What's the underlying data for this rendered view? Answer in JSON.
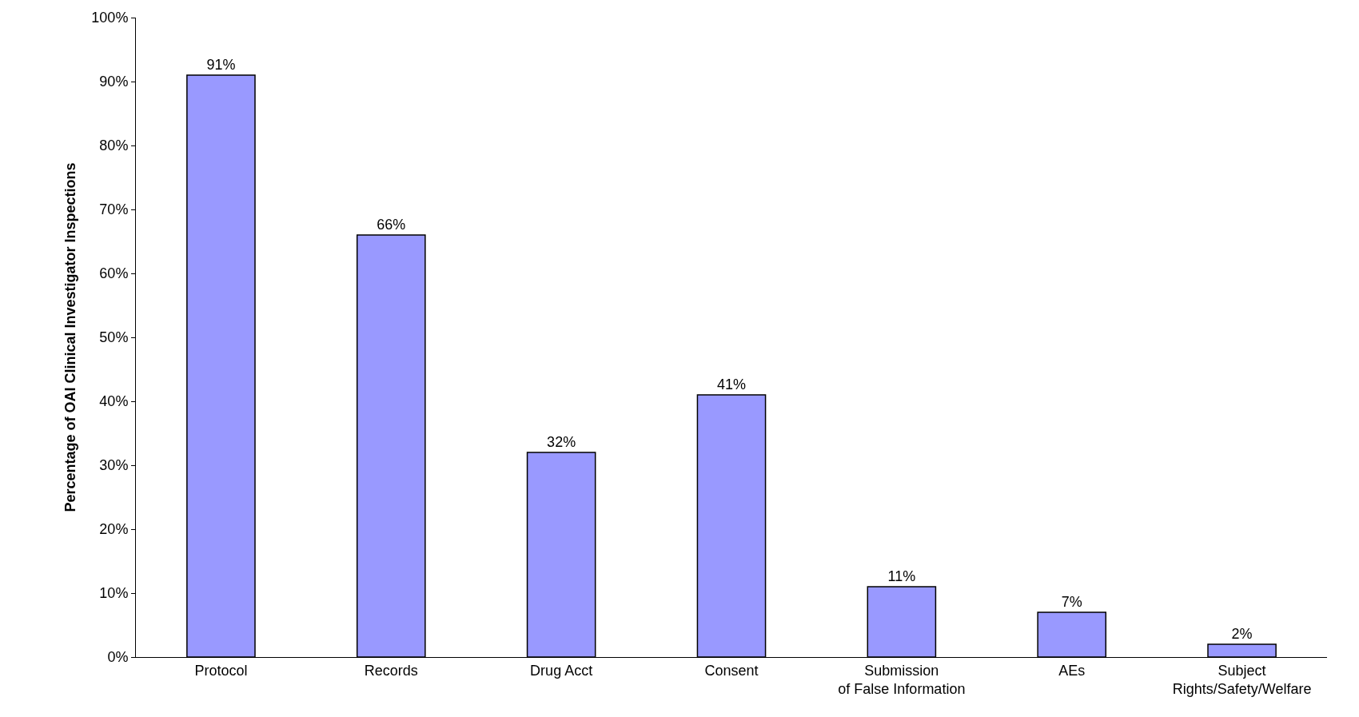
{
  "chart_data": {
    "type": "bar",
    "ylabel": "Percentage of OAI Clinical Investigator Inspections",
    "categories": [
      "Protocol",
      "Records",
      "Drug Acct",
      "Consent",
      "Submission\nof False Information",
      "AEs",
      "Subject\nRights/Safety/Welfare"
    ],
    "values": [
      91,
      66,
      32,
      41,
      11,
      7,
      2
    ],
    "value_labels": [
      "91%",
      "66%",
      "32%",
      "41%",
      "11%",
      "7%",
      "2%"
    ],
    "color": "#9999ff",
    "ylim": [
      0,
      100
    ],
    "yticks": [
      {
        "value": 0,
        "label": "0%"
      },
      {
        "value": 10,
        "label": "10%"
      },
      {
        "value": 20,
        "label": "20%"
      },
      {
        "value": 30,
        "label": "30%"
      },
      {
        "value": 40,
        "label": "40%"
      },
      {
        "value": 50,
        "label": "50%"
      },
      {
        "value": 60,
        "label": "60%"
      },
      {
        "value": 70,
        "label": "70%"
      },
      {
        "value": 80,
        "label": "80%"
      },
      {
        "value": 90,
        "label": "90%"
      },
      {
        "value": 100,
        "label": "100%"
      }
    ],
    "grid": false
  }
}
